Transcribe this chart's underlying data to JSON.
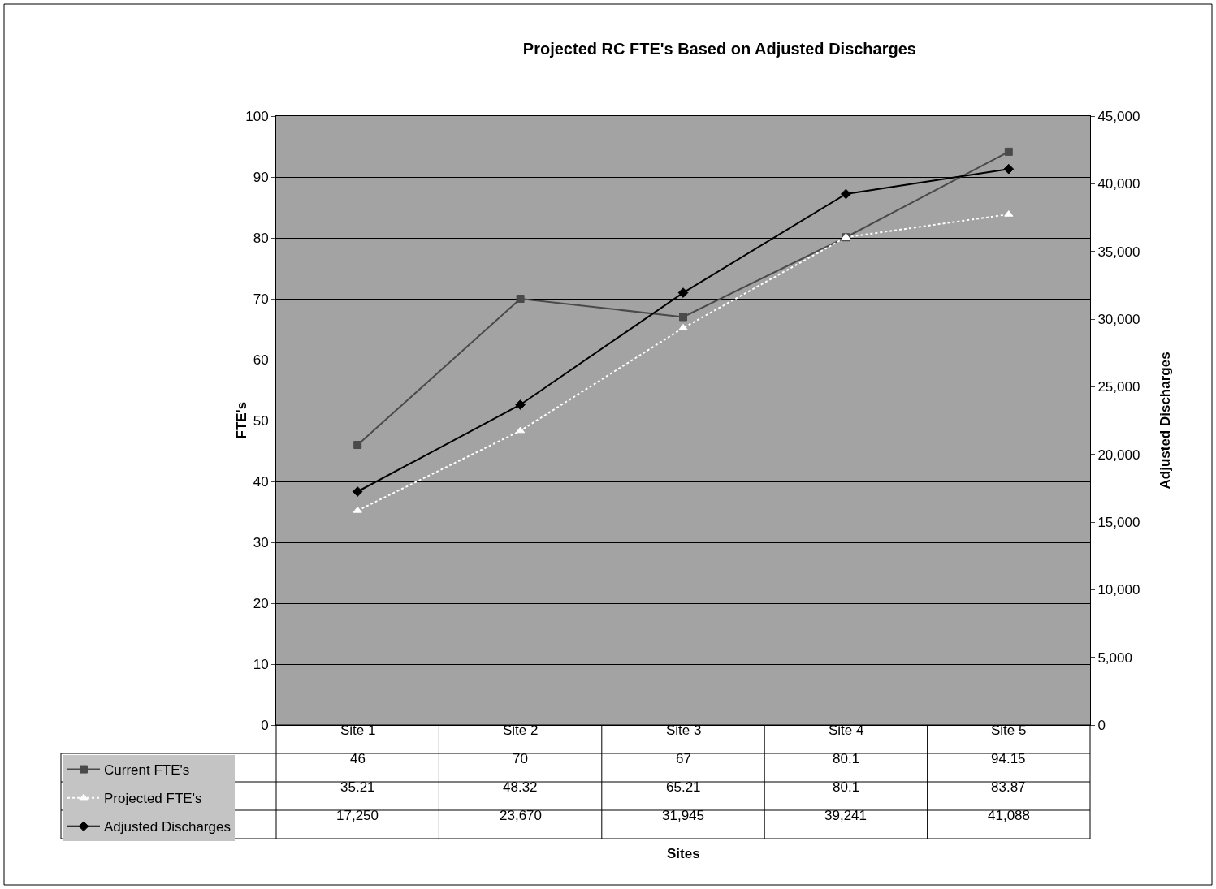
{
  "chart_data": {
    "type": "line",
    "title": "Projected RC FTE's Based on Adjusted Discharges",
    "annotations": [
      "Sites"
    ],
    "ylabel": "FTE's",
    "y2label": "Adjusted Discharges",
    "categories": [
      "Site 1",
      "Site 2",
      "Site 3",
      "Site 4",
      "Site 5"
    ],
    "series": [
      {
        "name": "Current FTE's",
        "color": "#4a4a4a",
        "values": [
          46,
          70,
          67,
          80.1,
          94.15
        ],
        "value_labels": [
          "46",
          "70",
          "67",
          "80.1",
          "94.15"
        ],
        "marker": "square",
        "line_style": "solid"
      },
      {
        "name": "Projected FTE's",
        "color": "#ffffff",
        "values": [
          35.21,
          48.32,
          65.21,
          80.1,
          83.87
        ],
        "value_labels": [
          "35.21",
          "48.32",
          "65.21",
          "80.1",
          "83.87"
        ],
        "marker": "triangle",
        "line_style": "dotted"
      },
      {
        "name": "Adjusted Discharges",
        "color": "#000000",
        "values": [
          17250,
          23670,
          31945,
          39241,
          41088
        ],
        "value_labels": [
          "17,250",
          "23,670",
          "31,945",
          "39,241",
          "41,088"
        ],
        "marker": "diamond",
        "line_style": "solid",
        "axis": "y2"
      }
    ],
    "ylim": [
      0,
      100
    ],
    "yticks": [
      0,
      10,
      20,
      30,
      40,
      50,
      60,
      70,
      80,
      90,
      100
    ],
    "y2lim": [
      0,
      45000
    ],
    "y2ticks": [
      0,
      {
        "value": 5000,
        "label": "5,000"
      },
      {
        "value": 10000,
        "label": "10,000"
      },
      {
        "value": 15000,
        "label": "15,000"
      },
      {
        "value": 20000,
        "label": "20,000"
      },
      {
        "value": 25000,
        "label": "25,000"
      },
      {
        "value": 30000,
        "label": "30,000"
      },
      {
        "value": 35000,
        "label": "35,000"
      },
      {
        "value": 40000,
        "label": "40,000"
      },
      {
        "value": 45000,
        "label": "45,000"
      }
    ],
    "grid": "y",
    "legend": "bottom left"
  }
}
